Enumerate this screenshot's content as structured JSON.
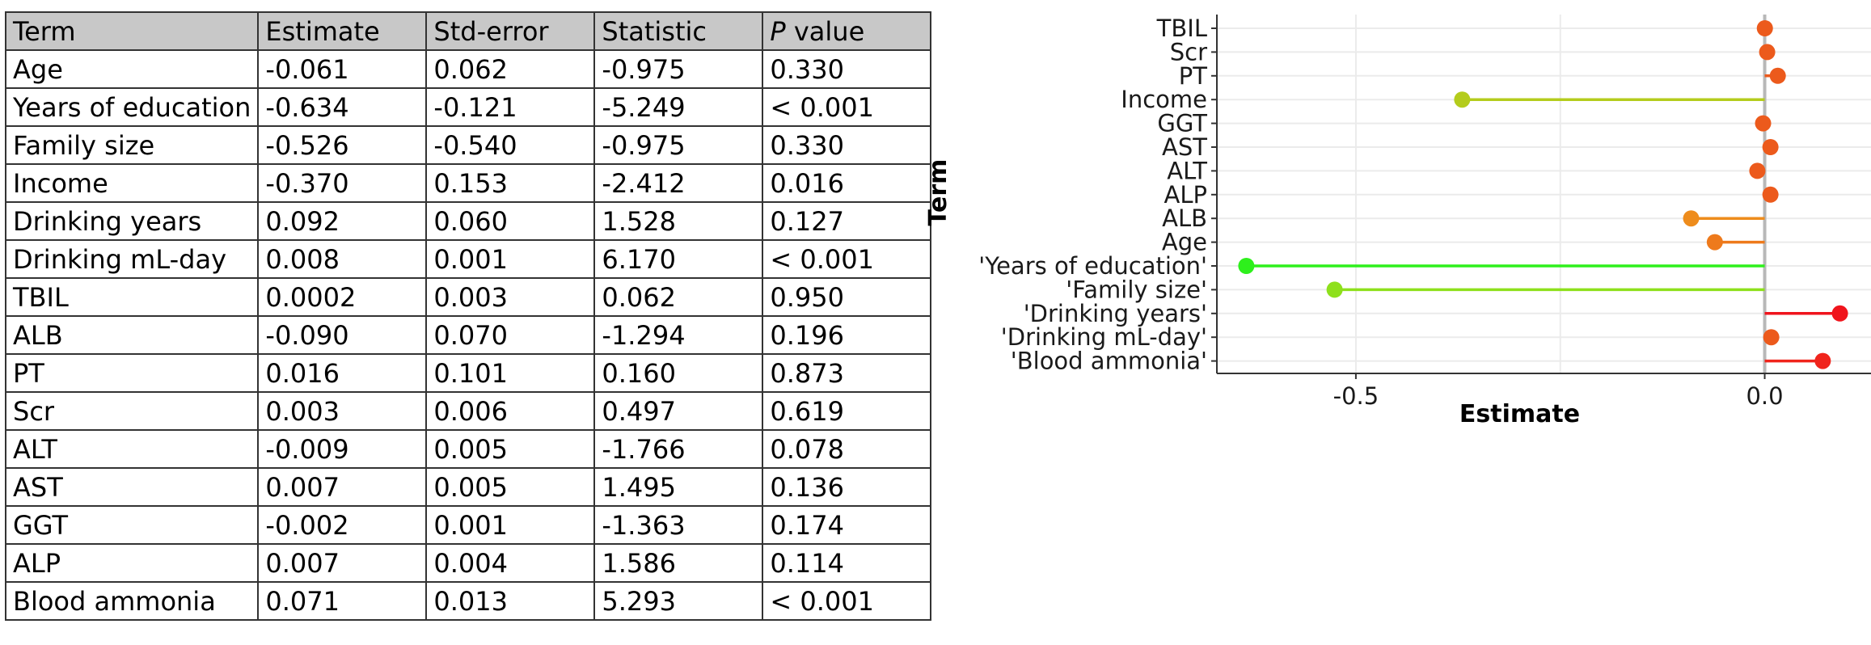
{
  "table": {
    "headers": [
      "Term",
      "Estimate",
      "Std-error",
      "Statistic",
      "value"
    ],
    "p_prefix": "P",
    "rows": [
      [
        "Age",
        "-0.061",
        "0.062",
        "-0.975",
        "0.330"
      ],
      [
        "Years of education",
        "-0.634",
        "-0.121",
        "-5.249",
        "< 0.001"
      ],
      [
        "Family size",
        "-0.526",
        "-0.540",
        "-0.975",
        "0.330"
      ],
      [
        "Income",
        "-0.370",
        "0.153",
        "-2.412",
        "0.016"
      ],
      [
        "Drinking years",
        "0.092",
        "0.060",
        "1.528",
        "0.127"
      ],
      [
        "Drinking mL-day",
        "0.008",
        "0.001",
        "6.170",
        "< 0.001"
      ],
      [
        "TBIL",
        "0.0002",
        "0.003",
        "0.062",
        "0.950"
      ],
      [
        "ALB",
        "-0.090",
        "0.070",
        "-1.294",
        "0.196"
      ],
      [
        "PT",
        "0.016",
        "0.101",
        "0.160",
        "0.873"
      ],
      [
        "Scr",
        "0.003",
        "0.006",
        "0.497",
        "0.619"
      ],
      [
        "ALT",
        "-0.009",
        "0.005",
        "-1.766",
        "0.078"
      ],
      [
        "AST",
        "0.007",
        "0.005",
        "1.495",
        "0.136"
      ],
      [
        "GGT",
        "-0.002",
        "0.001",
        "-1.363",
        "0.174"
      ],
      [
        "ALP",
        "0.007",
        "0.004",
        "1.586",
        "0.114"
      ],
      [
        "Blood ammonia",
        "0.071",
        "0.013",
        "5.293",
        "< 0.001"
      ]
    ]
  },
  "chart_data": {
    "type": "lollipop",
    "xlabel": "Estimate",
    "ylabel": "Term",
    "xlim": [
      -0.67,
      0.13
    ],
    "xticks": [
      -0.5,
      0.0
    ],
    "xtick_labels": [
      "-0.5",
      "0.0"
    ],
    "grid": true,
    "categories": [
      "TBIL",
      "Scr",
      "PT",
      "Income",
      "GGT",
      "AST",
      "ALT",
      "ALP",
      "ALB",
      "Age",
      "'Years of education'",
      "'Family size'",
      "'Drinking years'",
      "'Drinking mL-day'",
      "'Blood ammonia'"
    ],
    "values": [
      0.0002,
      0.003,
      0.016,
      -0.37,
      -0.002,
      0.007,
      -0.009,
      0.007,
      -0.09,
      -0.061,
      -0.634,
      -0.526,
      0.092,
      0.008,
      0.071
    ],
    "colors": [
      "#ec5a1c",
      "#ec5a1c",
      "#ec5a1c",
      "#b4cc1c",
      "#ec5a1c",
      "#ec5a1c",
      "#ec5a1c",
      "#ec5a1c",
      "#ee8c1c",
      "#ee7a1c",
      "#2ef01c",
      "#8ee01c",
      "#f0141c",
      "#ec5a1c",
      "#f0241c"
    ],
    "zero_line_color": "#b8b8b8"
  }
}
